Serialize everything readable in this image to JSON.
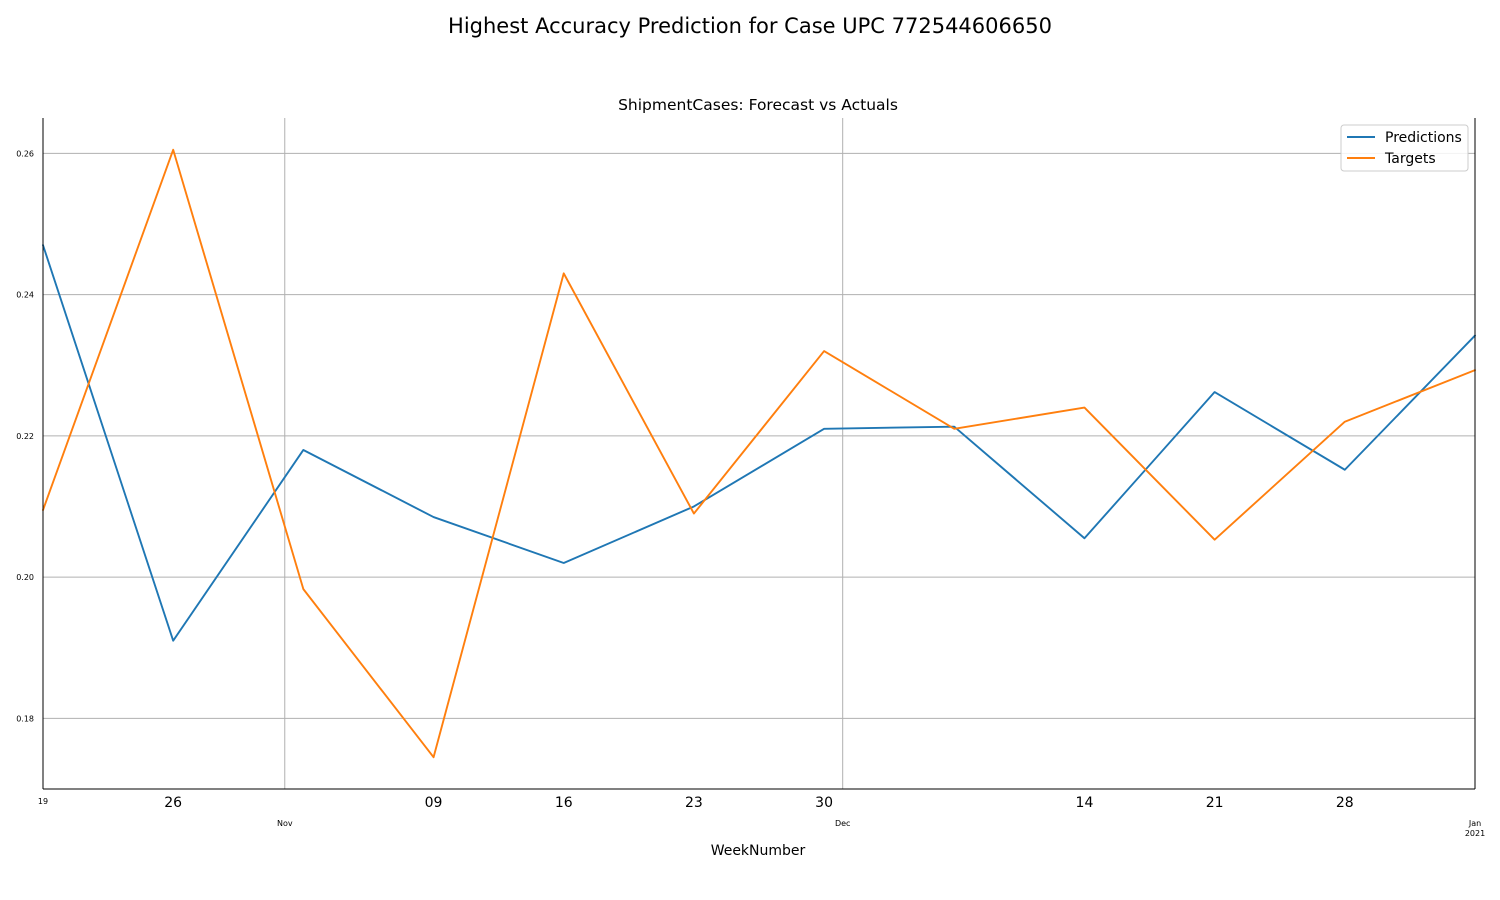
{
  "figure": {
    "suptitle": "Highest Accuracy Prediction for Case UPC 772544606650"
  },
  "chart_data": {
    "type": "line",
    "title": "ShipmentCases: Forecast vs Actuals",
    "xlabel": "WeekNumber",
    "ylabel": "",
    "x": [
      "2020-10-19",
      "2020-10-26",
      "2020-11-02",
      "2020-11-09",
      "2020-11-16",
      "2020-11-23",
      "2020-11-30",
      "2020-12-07",
      "2020-12-14",
      "2020-12-21",
      "2020-12-28",
      "2021-01-04"
    ],
    "xlim": [
      "2020-10-19",
      "2021-01-04"
    ],
    "ylim": [
      0.17,
      0.265
    ],
    "yticks": [
      0.18,
      0.2,
      0.22,
      0.24,
      0.26
    ],
    "ytick_labels": [
      "0.18",
      "0.20",
      "0.22",
      "0.24",
      "0.26"
    ],
    "xticks_major": [
      {
        "x": "2020-10-26",
        "label": "26"
      },
      {
        "x": "2020-11-09",
        "label": "09"
      },
      {
        "x": "2020-11-16",
        "label": "16"
      },
      {
        "x": "2020-11-23",
        "label": "23"
      },
      {
        "x": "2020-11-30",
        "label": "30"
      },
      {
        "x": "2020-12-14",
        "label": "14"
      },
      {
        "x": "2020-12-21",
        "label": "21"
      },
      {
        "x": "2020-12-28",
        "label": "28"
      }
    ],
    "xticks_minor": [
      {
        "x": "2020-10-19",
        "label": "19"
      },
      {
        "x": "2020-11-01",
        "label": "Nov"
      },
      {
        "x": "2020-12-01",
        "label": "Dec"
      },
      {
        "x": "2021-01-04",
        "label": "Jan\n2021"
      }
    ],
    "vgrid_at": [
      "2020-11-01",
      "2020-12-01"
    ],
    "grid": true,
    "legend_position": "top-right",
    "series": [
      {
        "name": "Predictions",
        "color": "#1f77b4",
        "values": [
          0.247,
          0.191,
          0.218,
          0.2085,
          0.202,
          0.21,
          0.221,
          0.2213,
          0.2055,
          0.2262,
          0.2152,
          0.2342
        ]
      },
      {
        "name": "Targets",
        "color": "#ff7f0e",
        "values": [
          0.2095,
          0.2605,
          0.1983,
          0.1745,
          0.243,
          0.209,
          0.232,
          0.221,
          0.224,
          0.2053,
          0.222,
          0.2293
        ]
      }
    ]
  }
}
